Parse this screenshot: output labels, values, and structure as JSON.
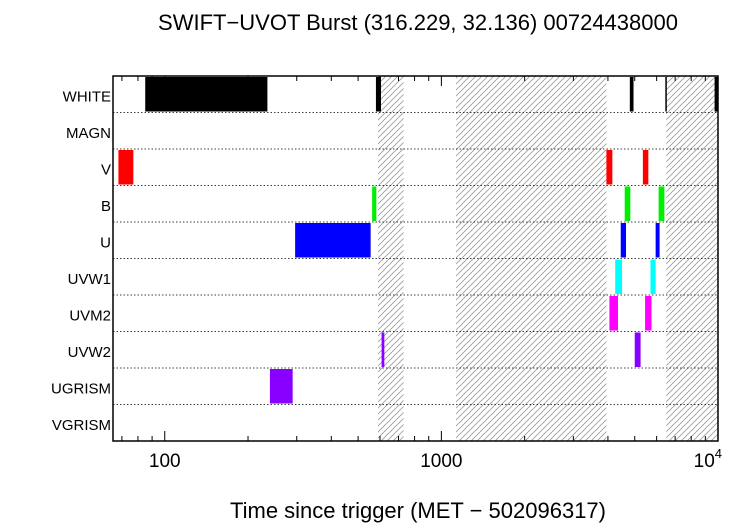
{
  "chart_data": {
    "type": "bar",
    "title": "SWIFT−UVOT Burst (316.229, 32.136) 00724438000",
    "xlabel": "Time since trigger (MET − 502096317)",
    "ylabel": "",
    "x_scale": "log",
    "xlim": [
      65,
      10000
    ],
    "grid": false,
    "x_ticks": [
      {
        "value": 100,
        "label": "100"
      },
      {
        "value": 1000,
        "label": "1000"
      },
      {
        "value": 10000,
        "label": "10",
        "exponent": "4"
      }
    ],
    "filters": [
      "WHITE",
      "MAGN",
      "V",
      "B",
      "U",
      "UVW1",
      "UVM2",
      "UVW2",
      "UGRISM",
      "VGRISM"
    ],
    "hatched_intervals": [
      [
        590,
        730
      ],
      [
        1130,
        3950
      ],
      [
        6500,
        10000
      ]
    ],
    "exposures": [
      {
        "filter": "WHITE",
        "start": 85,
        "end": 235,
        "color": "#000000"
      },
      {
        "filter": "WHITE",
        "start": 580,
        "end": 605,
        "color": "#000000"
      },
      {
        "filter": "WHITE",
        "start": 4800,
        "end": 4950,
        "color": "#000000"
      },
      {
        "filter": "WHITE",
        "start": 6450,
        "end": 6520,
        "color": "#000000"
      },
      {
        "filter": "WHITE",
        "start": 9720,
        "end": 10000,
        "color": "#000000"
      },
      {
        "filter": "V",
        "start": 68,
        "end": 77,
        "color": "#ff0000"
      },
      {
        "filter": "V",
        "start": 3950,
        "end": 4150,
        "color": "#ff0000"
      },
      {
        "filter": "V",
        "start": 5350,
        "end": 5600,
        "color": "#ff0000"
      },
      {
        "filter": "B",
        "start": 562,
        "end": 582,
        "color": "#00ee00"
      },
      {
        "filter": "B",
        "start": 4600,
        "end": 4820,
        "color": "#00ee00"
      },
      {
        "filter": "B",
        "start": 6100,
        "end": 6400,
        "color": "#00ee00"
      },
      {
        "filter": "U",
        "start": 296,
        "end": 555,
        "color": "#0000ff"
      },
      {
        "filter": "U",
        "start": 4450,
        "end": 4650,
        "color": "#0000ff"
      },
      {
        "filter": "U",
        "start": 5950,
        "end": 6150,
        "color": "#0000ff"
      },
      {
        "filter": "UVW1",
        "start": 4250,
        "end": 4500,
        "color": "#00ffff"
      },
      {
        "filter": "UVW1",
        "start": 5700,
        "end": 5950,
        "color": "#00ffff"
      },
      {
        "filter": "UVM2",
        "start": 4050,
        "end": 4350,
        "color": "#ff00ff"
      },
      {
        "filter": "UVM2",
        "start": 5450,
        "end": 5750,
        "color": "#ff00ff"
      },
      {
        "filter": "UVW2",
        "start": 608,
        "end": 622,
        "color": "#8800ff"
      },
      {
        "filter": "UVW2",
        "start": 5000,
        "end": 5250,
        "color": "#8800ff"
      },
      {
        "filter": "UGRISM",
        "start": 240,
        "end": 290,
        "color": "#8800ff"
      }
    ]
  }
}
